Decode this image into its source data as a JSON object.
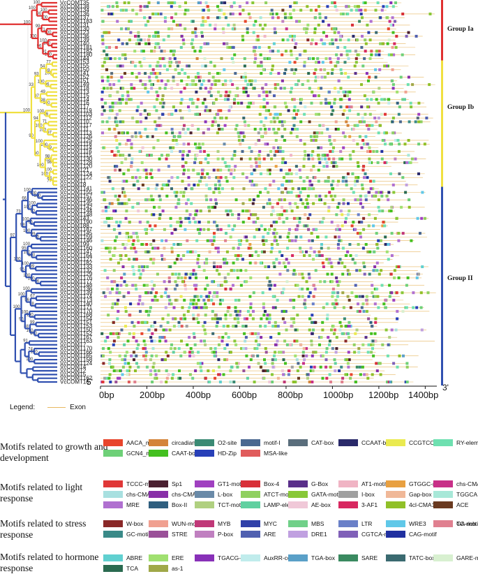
{
  "genes": [
    "VcCOMT35",
    "VcCOMT38",
    "VcCOMT34",
    "VcCOMT36",
    "VcCOMT37",
    "VcCOMT183",
    "VcCOMT31",
    "VcCOMT30",
    "VcCOMT23",
    "VcCOMT36",
    "VcCOMT39",
    "VcCOMT40",
    "VcCOMT181",
    "VcCOMT182",
    "VcCOMT180",
    "VcCOMT44",
    "VcCOMT53",
    "VcCOMT55",
    "VcCOMT50",
    "VcCOMT41",
    "VcCOMT52",
    "VcCOMT51",
    "VcCOMT49",
    "VcCOMT18",
    "VcCOMT13",
    "VcCOMT15",
    "VcCOMT14",
    "VcCOMT16",
    "VcCOMT17",
    "VcCOMT119",
    "VcCOMT103",
    "VcCOMT112",
    "VcCOMT10",
    "VcCOMT117",
    "VcCOMT11",
    "VcCOMT113",
    "VcCOMT126",
    "VcCOMT125",
    "VcCOMT118",
    "VcCOMT114",
    "VcCOMT116",
    "VcCOMT115",
    "VcCOMT130",
    "VcCOMT128",
    "VcCOMT120",
    "VcCOMT21",
    "VcCOMT124",
    "VcCOMT122",
    "VcCOMT1",
    "VcCOMT8",
    "VcCOMT141",
    "VcCOMT155",
    "VcCOMT157",
    "VcCOMT146",
    "VcCOMT145",
    "VcCOMT142",
    "VcCOMT144",
    "VcCOMT148",
    "VcCOMT43",
    "VcCOMT190",
    "VcCOMT88",
    "VcCOMT187",
    "VcCOMT145",
    "VcCOMT159",
    "VcCOMT146",
    "VcCOMT99",
    "VcCOMT160",
    "VcCOMT147",
    "VcCOMT164",
    "VcCOMT127",
    "VcCOMT182",
    "VcCOMT133",
    "VcCOMT132",
    "VcCOMT129",
    "VcCOMT176",
    "VcCOMT177",
    "VcCOMT148",
    "VcCOMT136",
    "VcCOMT139",
    "VcCOMT174",
    "VcCOMT173",
    "VcCOMT140",
    "VcCOMT171",
    "VcCOMT170",
    "VcCOMT168",
    "VcCOMT154",
    "VcCOMT151",
    "VcCOMT153",
    "VcCOMT150",
    "VcCOMT152",
    "VcCOMT167",
    "VcCOMT163",
    "VcCOMT7",
    "VcCOMT170",
    "VcCOMT166",
    "VcCOMT165",
    "VcCOMT158",
    "VcCOMT124",
    "VcCOMT4",
    "VcCOMT2",
    "VcCOMT5",
    "VcCOMT162",
    "VcCOMT16"
  ],
  "bootstrap": [
    "100",
    "100",
    "100",
    "90",
    "100",
    "100",
    "71",
    "99",
    "100",
    "100",
    "100",
    "91",
    "96",
    "100",
    "100",
    "77",
    "100",
    "69",
    "54",
    "96",
    "100",
    "93",
    "49",
    "100",
    "98",
    "97",
    "33",
    "56",
    "100",
    "71",
    "97",
    "100",
    "100",
    "94",
    "89",
    "100",
    "100",
    "98",
    "100",
    "98",
    "100",
    "77",
    "88",
    "100",
    "100",
    "60",
    "90",
    "100",
    "100",
    "100",
    "100",
    "100",
    "90",
    "100",
    "66",
    "56",
    "100",
    "95",
    "99",
    "100",
    "98",
    "73",
    "100",
    "100",
    "100",
    "95",
    "99",
    "100",
    "96",
    "100",
    "100",
    "95",
    "100",
    "97",
    "100",
    "67",
    "98",
    "56",
    "100",
    "100",
    "100",
    "99",
    "100",
    "100",
    "88",
    "95",
    "100",
    "91",
    "100",
    "74",
    "100"
  ],
  "groups": [
    {
      "label": "Group Ia",
      "color": "#e03030"
    },
    {
      "label": "Group Ib",
      "color": "#f0e040"
    },
    {
      "label": "Group II",
      "color": "#3050b0"
    }
  ],
  "axis": {
    "ticks": [
      "0bp",
      "200bp",
      "400bp",
      "600bp",
      "800bp",
      "1000bp",
      "1200bp",
      "1400bp"
    ],
    "left_end": "5'",
    "right_end": "3'"
  },
  "legend": {
    "label": "Legend:",
    "exon_label": "Exon",
    "exon_color": "#e8b860"
  },
  "categories": [
    {
      "title": "Motifs related to growth and development",
      "motifs": [
        {
          "name": "AACA_motif",
          "color": "#e8452c"
        },
        {
          "name": "circadian",
          "color": "#d4843a"
        },
        {
          "name": "O2-site",
          "color": "#3a8a74"
        },
        {
          "name": "motif-I",
          "color": "#4a6890"
        },
        {
          "name": "CAT-box",
          "color": "#5a6e7c"
        },
        {
          "name": "CCAAT-box",
          "color": "#2a2a6a"
        },
        {
          "name": "CCGTCC-box",
          "color": "#eaea50"
        },
        {
          "name": "RY-element",
          "color": "#6ee0b0"
        },
        {
          "name": "GCN4_motif",
          "color": "#6ed078"
        },
        {
          "name": "CAAT-box",
          "color": "#44c020"
        },
        {
          "name": "HD-Zip",
          "color": "#2840b8"
        },
        {
          "name": "MSA-like",
          "color": "#e05c5c"
        }
      ]
    },
    {
      "title": "Motifs related to light response",
      "motifs": [
        {
          "name": "TCCC-motif",
          "color": "#e03838"
        },
        {
          "name": "Sp1",
          "color": "#4a2030"
        },
        {
          "name": "GT1-motif",
          "color": "#a040c0"
        },
        {
          "name": "Box-4",
          "color": "#d83038"
        },
        {
          "name": "G-Box",
          "color": "#5a2f8a"
        },
        {
          "name": "AT1-motif",
          "color": "#f0b4c4"
        },
        {
          "name": "GTGGC-motif",
          "color": "#e8a040"
        },
        {
          "name": "chs-CMA2b",
          "color": "#c83088"
        },
        {
          "name": "chs-CMA1a",
          "color": "#a8e0e0"
        },
        {
          "name": "chs-CMA2a",
          "color": "#8830a8"
        },
        {
          "name": "L-box",
          "color": "#6a8aa8"
        },
        {
          "name": "ATCT-motif",
          "color": "#90d060"
        },
        {
          "name": "GATA-motif",
          "color": "#88c838"
        },
        {
          "name": "I-box",
          "color": "#a0a0a0"
        },
        {
          "name": "Gap-box",
          "color": "#f0b898"
        },
        {
          "name": "TGGCA",
          "color": "#a8e8d8"
        },
        {
          "name": "MRE",
          "color": "#b070d0"
        },
        {
          "name": "Box-II",
          "color": "#2f5f7f"
        },
        {
          "name": "TCT-motif",
          "color": "#b0d080"
        },
        {
          "name": "LAMP-element",
          "color": "#60d0a0"
        },
        {
          "name": "AE-box",
          "color": "#f0c8d8"
        },
        {
          "name": "3-AF1",
          "color": "#d82860"
        },
        {
          "name": "4cl-CMA1b",
          "color": "#90c028"
        },
        {
          "name": "ACE",
          "color": "#6a3a20"
        }
      ]
    },
    {
      "title": "Motifs related to stress response",
      "motifs": [
        {
          "name": "W-box",
          "color": "#8a2828"
        },
        {
          "name": "WUN-motif",
          "color": "#f0a090"
        },
        {
          "name": "MYB",
          "color": "#c03878"
        },
        {
          "name": "MYC",
          "color": "#3040a8"
        },
        {
          "name": "MBS",
          "color": "#70d088"
        },
        {
          "name": "LTR",
          "color": "#6a80c8"
        },
        {
          "name": "WRE3",
          "color": "#60c8e8"
        },
        {
          "name": "TC-rich",
          "color": "#a040c0"
        },
        {
          "name": "GA-motif",
          "color": "#e08090"
        },
        {
          "name": "GC-motif",
          "color": "#3a8a88"
        },
        {
          "name": "STRE",
          "color": "#9a5098"
        },
        {
          "name": "P-box",
          "color": "#c080c0"
        },
        {
          "name": "ARE",
          "color": "#5060b0"
        },
        {
          "name": "DRE1",
          "color": "#c0a0e0"
        },
        {
          "name": "CGTCA-motif",
          "color": "#8060b8"
        },
        {
          "name": "CAG-motif",
          "color": "#2030a0"
        }
      ]
    },
    {
      "title": "Motifs related to hormone response",
      "motifs": [
        {
          "name": "ABRE",
          "color": "#60d0d0"
        },
        {
          "name": "ERE",
          "color": "#a0e070"
        },
        {
          "name": "TGACG-motif",
          "color": "#8830b8"
        },
        {
          "name": "AuxRR-core",
          "color": "#c0ecec"
        },
        {
          "name": "TGA-box",
          "color": "#5aa0c8"
        },
        {
          "name": "SARE",
          "color": "#3a8a60"
        },
        {
          "name": "TATC-box",
          "color": "#3a6a70"
        },
        {
          "name": "GARE-motif",
          "color": "#d8f0d0"
        },
        {
          "name": "TCA",
          "color": "#2a6a50"
        },
        {
          "name": "as-1",
          "color": "#a0a848"
        }
      ]
    }
  ]
}
